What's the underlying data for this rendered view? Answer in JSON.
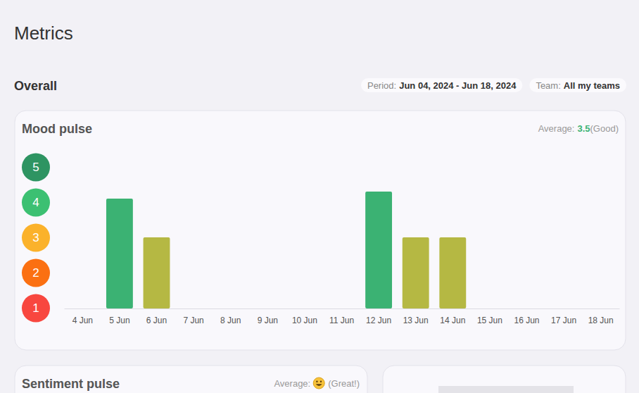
{
  "header": {
    "title": "Metrics",
    "section": "Overall",
    "filters": [
      {
        "label": "Period:",
        "value": "Jun 04, 2024 - Jun 18, 2024"
      },
      {
        "label": "Team:",
        "value": "All my teams"
      }
    ]
  },
  "chart_data": {
    "type": "bar",
    "title": "Mood pulse",
    "annotations": [
      {
        "text": "Average:",
        "value": 3.5,
        "label": "(Good)"
      }
    ],
    "categories": [
      "4 Jun",
      "5 Jun",
      "6 Jun",
      "7 Jun",
      "8 Jun",
      "9 Jun",
      "10 Jun",
      "11 Jun",
      "12 Jun",
      "13 Jun",
      "14 Jun",
      "15 Jun",
      "16 Jun",
      "17 Jun",
      "18 Jun"
    ],
    "values": [
      null,
      4.1,
      3,
      null,
      null,
      null,
      null,
      null,
      4.3,
      3,
      3,
      null,
      null,
      null,
      null
    ],
    "colors": [
      null,
      "#3bb273",
      "#b5b843",
      null,
      null,
      null,
      null,
      null,
      "#3bb273",
      "#b5b843",
      "#b5b843",
      null,
      null,
      null,
      null
    ],
    "ylim": [
      1,
      5
    ],
    "yticks": [
      1,
      2,
      3,
      4,
      5
    ],
    "grid": false
  },
  "cards": [
    {
      "title": "Sentiment pulse",
      "average_label": "Average:",
      "average_text": "(Great!)"
    }
  ]
}
